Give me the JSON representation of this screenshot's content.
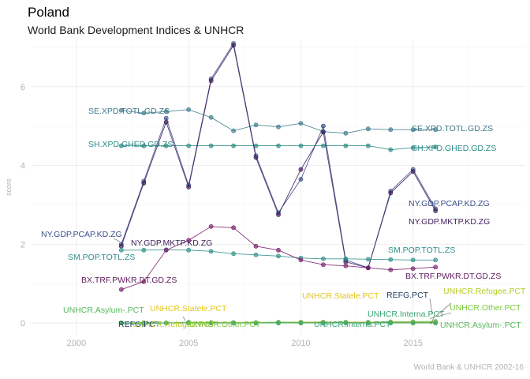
{
  "header": {
    "title": "Poland",
    "subtitle": "World Bank Development Indices & UNHCR"
  },
  "caption": "World Bank & UNHCR 2002-16",
  "chart_data": {
    "type": "line",
    "title": "Poland",
    "subtitle": "World Bank Development Indices & UNHCR",
    "xlabel": "",
    "ylabel": "score",
    "xlim": [
      1998,
      2020
    ],
    "ylim": [
      -0.3,
      7.2
    ],
    "x_ticks": [
      2000,
      2005,
      2010,
      2015
    ],
    "y_ticks": [
      0,
      2,
      4,
      6
    ],
    "grid": true,
    "legend": "none (direct labels)",
    "series": [
      {
        "name": "SE.XPD.TOTL.GD.ZS",
        "color": "#3e7b8c",
        "x": [
          2002,
          2003,
          2004,
          2005,
          2006,
          2007,
          2008,
          2009,
          2010,
          2011,
          2012,
          2013,
          2014,
          2015,
          2016
        ],
        "values": [
          5.4,
          5.33,
          5.37,
          5.42,
          5.22,
          4.88,
          5.03,
          4.98,
          5.07,
          4.86,
          4.82,
          4.93,
          4.91,
          4.91,
          4.91
        ]
      },
      {
        "name": "SH.XPD.GHED.GD.ZS",
        "color": "#2b8a85",
        "x": [
          2002,
          2003,
          2004,
          2005,
          2006,
          2007,
          2008,
          2009,
          2010,
          2011,
          2012,
          2013,
          2014,
          2015,
          2016
        ],
        "values": [
          4.5,
          4.5,
          4.5,
          4.5,
          4.5,
          4.5,
          4.5,
          4.5,
          4.5,
          4.5,
          4.5,
          4.5,
          4.4,
          4.45,
          4.47
        ]
      },
      {
        "name": "NY.GDP.PCAP.KD.ZG",
        "color": "#3b4f8b",
        "x": [
          2002,
          2003,
          2004,
          2005,
          2006,
          2007,
          2008,
          2009,
          2010,
          2011,
          2012,
          2013,
          2014,
          2015,
          2016
        ],
        "values": [
          2.0,
          3.6,
          5.2,
          3.5,
          6.2,
          7.1,
          4.25,
          2.8,
          3.65,
          5.0,
          1.6,
          1.4,
          3.35,
          3.9,
          2.9
        ]
      },
      {
        "name": "NY.GDP.MKTP.KD.ZG",
        "color": "#3f1f5c",
        "x": [
          2002,
          2003,
          2004,
          2005,
          2006,
          2007,
          2008,
          2009,
          2010,
          2011,
          2012,
          2013,
          2014,
          2015,
          2016
        ],
        "values": [
          1.95,
          3.55,
          5.1,
          3.45,
          6.15,
          7.05,
          4.2,
          2.75,
          3.9,
          4.85,
          1.55,
          1.4,
          3.3,
          3.85,
          2.85
        ]
      },
      {
        "name": "SM.POP.TOTL.ZS",
        "color": "#2e8f8a",
        "x": [
          2002,
          2003,
          2004,
          2005,
          2006,
          2007,
          2008,
          2009,
          2010,
          2011,
          2012,
          2013,
          2014,
          2015,
          2016
        ],
        "values": [
          1.85,
          1.85,
          1.86,
          1.85,
          1.82,
          1.76,
          1.73,
          1.7,
          1.65,
          1.63,
          1.63,
          1.62,
          1.61,
          1.6,
          1.6
        ]
      },
      {
        "name": "BX.TRF.PWKR.DT.GD.ZS",
        "color": "#7b1e6e",
        "x": [
          2002,
          2003,
          2004,
          2005,
          2006,
          2007,
          2008,
          2009,
          2010,
          2011,
          2012,
          2013,
          2014,
          2015,
          2016
        ],
        "values": [
          0.85,
          1.05,
          1.85,
          2.1,
          2.45,
          2.42,
          1.95,
          1.85,
          1.6,
          1.48,
          1.45,
          1.4,
          1.35,
          1.38,
          1.42
        ]
      },
      {
        "name": "UNHCR.Asylum-.PCT",
        "color": "#57b85a",
        "x": [
          2002,
          2003,
          2004,
          2005,
          2006,
          2007,
          2008,
          2009,
          2010,
          2011,
          2012,
          2013,
          2014,
          2015,
          2016
        ],
        "values": [
          0.0,
          -0.02,
          0.0,
          0.02,
          0.01,
          0.01,
          0.01,
          0.02,
          0.02,
          0.02,
          0.02,
          0.02,
          0.03,
          0.03,
          0.04
        ]
      },
      {
        "name": "REFG.PCT",
        "color": "#22405c",
        "x": [
          2002,
          2003,
          2004,
          2005,
          2006,
          2007,
          2008,
          2009,
          2010,
          2011,
          2012,
          2013,
          2014,
          2015,
          2016
        ],
        "values": [
          0.0,
          0.0,
          0.0,
          0.0,
          0.0,
          0.0,
          0.0,
          0.01,
          0.01,
          0.01,
          0.01,
          0.01,
          0.01,
          0.01,
          0.01
        ]
      },
      {
        "name": "UNHCR.Statele.PCT",
        "color": "#d4c418",
        "x": [
          2002,
          2003,
          2004,
          2005,
          2006,
          2007,
          2008,
          2009,
          2010,
          2011,
          2012,
          2013,
          2014,
          2015,
          2016
        ],
        "values": [
          0.0,
          0.0,
          0.0,
          0.0,
          0.0,
          0.0,
          0.0,
          0.0,
          0.0,
          0.0,
          0.0,
          0.0,
          0.0,
          0.0,
          0.0
        ]
      },
      {
        "name": "UNHCR.Refugee.PCT",
        "color": "#a6c22b",
        "x": [
          2002,
          2003,
          2004,
          2005,
          2006,
          2007,
          2008,
          2009,
          2010,
          2011,
          2012,
          2013,
          2014,
          2015,
          2016
        ],
        "values": [
          0.0,
          0.01,
          0.0,
          0.01,
          0.01,
          0.01,
          0.01,
          0.01,
          0.02,
          0.02,
          0.02,
          0.02,
          0.02,
          0.02,
          0.02
        ]
      },
      {
        "name": "UNHCR.Other.PCT",
        "color": "#7cc73d",
        "x": [
          2002,
          2003,
          2004,
          2005,
          2006,
          2007,
          2008,
          2009,
          2010,
          2011,
          2012,
          2013,
          2014,
          2015,
          2016
        ],
        "values": [
          0.0,
          0.0,
          0.0,
          0.0,
          0.0,
          0.0,
          0.0,
          0.0,
          0.0,
          0.0,
          0.0,
          0.0,
          0.0,
          0.0,
          0.0
        ]
      },
      {
        "name": "UNHCR.Interna.PCT",
        "color": "#3aa474",
        "x": [
          2002,
          2003,
          2004,
          2005,
          2006,
          2007,
          2008,
          2009,
          2010,
          2011,
          2012,
          2013,
          2014,
          2015,
          2016
        ],
        "values": [
          0.0,
          0.0,
          0.0,
          0.0,
          0.0,
          0.0,
          0.0,
          0.0,
          0.0,
          0.0,
          0.0,
          0.0,
          0.0,
          0.0,
          0.0
        ]
      }
    ],
    "annotations": [
      {
        "text": "SE.XPD.TOTL.GD.ZS",
        "series": "SE.XPD.TOTL.GD.ZS",
        "color": "#3e7b8c"
      },
      {
        "text": "SE.XPD.TOTL.GD.ZS",
        "series": "SE.XPD.TOTL.GD.ZS",
        "color": "#3e7b8c"
      },
      {
        "text": "SH.XPD.GHED.GD.ZS",
        "series": "SH.XPD.GHED.GD.ZS",
        "color": "#2b8a85"
      },
      {
        "text": "SH.XPD.GHED.GD.ZS",
        "series": "SH.XPD.GHED.GD.ZS",
        "color": "#2b8a85"
      },
      {
        "text": "NY.GDP.PCAP.KD.ZG",
        "series": "NY.GDP.PCAP.KD.ZG",
        "color": "#3b4f8b"
      },
      {
        "text": "NY.GDP.PCAP.KD.ZG",
        "series": "NY.GDP.PCAP.KD.ZG",
        "color": "#3b4f8b"
      },
      {
        "text": "NY.GDP.MKTP.KD.ZG",
        "series": "NY.GDP.MKTP.KD.ZG",
        "color": "#3f1f5c"
      },
      {
        "text": "NY.GDP.MKTP.KD.ZG",
        "series": "NY.GDP.MKTP.KD.ZG",
        "color": "#3f1f5c"
      },
      {
        "text": "SM.POP.TOTL.ZS",
        "series": "SM.POP.TOTL.ZS",
        "color": "#2e8f8a"
      },
      {
        "text": "SM.POP.TOTL.ZS",
        "series": "SM.POP.TOTL.ZS",
        "color": "#2e8f8a"
      },
      {
        "text": "BX.TRF.PWKR.DT.GD.ZS",
        "series": "BX.TRF.PWKR.DT.GD.ZS",
        "color": "#5e1d5e"
      },
      {
        "text": "BX.TRF.PWKR.DT.GD.ZS",
        "series": "BX.TRF.PWKR.DT.GD.ZS",
        "color": "#5e1d5e"
      },
      {
        "text": "UNHCR.Asylum-.PCT",
        "series": "UNHCR.Asylum-.PCT",
        "color": "#57b85a"
      },
      {
        "text": "UNHCR.Asylum-.PCT",
        "series": "UNHCR.Asylum-.PCT",
        "color": "#57b85a"
      },
      {
        "text": "REFG.PCT",
        "series": "REFG.PCT",
        "color": "#22405c"
      },
      {
        "text": "REFG.PCT",
        "series": "REFG.PCT",
        "color": "#22405c"
      },
      {
        "text": "UNHCR.Statele.PCT",
        "series": "UNHCR.Statele.PCT",
        "color": "#e3c61a"
      },
      {
        "text": "UNHCR.Statele.PCT",
        "series": "UNHCR.Statele.PCT",
        "color": "#e3c61a"
      },
      {
        "text": "UNHCR.Refugee.PCT",
        "series": "UNHCR.Refugee.PCT",
        "color": "#b7cc24"
      },
      {
        "text": "UNHCR.Refugee.PCT",
        "series": "UNHCR.Refugee.PCT",
        "color": "#b7cc24"
      },
      {
        "text": "UNHCR.Other.PCT",
        "series": "UNHCR.Other.PCT",
        "color": "#7cc73d"
      },
      {
        "text": "UNHCR.Other.PCT",
        "series": "UNHCR.Other.PCT",
        "color": "#7cc73d"
      },
      {
        "text": "UNHCR.Interna.PCT",
        "series": "UNHCR.Interna.PCT",
        "color": "#3aa474"
      },
      {
        "text": "UNHCR.Interna.PCT",
        "series": "UNHCR.Interna.PCT",
        "color": "#3aa474"
      }
    ]
  }
}
